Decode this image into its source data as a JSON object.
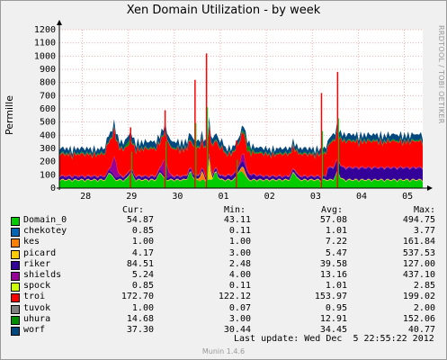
{
  "title": "Xen Domain Utilization - by week",
  "side_credit": "RRDTOOL / TOBI OETIKER",
  "chart_data": {
    "type": "area",
    "title": "Xen Domain Utilization - by week",
    "ylabel": "Permille",
    "ylim": [
      0,
      1200
    ],
    "yticks": [
      0,
      100,
      200,
      300,
      400,
      500,
      600,
      700,
      800,
      900,
      1000,
      1100,
      1200
    ],
    "xtick_labels": [
      "28",
      "29",
      "30",
      "01",
      "02",
      "03",
      "04",
      "05"
    ],
    "grid": true,
    "stacked": true,
    "series": [
      {
        "name": "Domain_0",
        "color": "#00cc00",
        "cur": "54.87",
        "min": "43.11",
        "avg": "57.08",
        "max": "494.75"
      },
      {
        "name": "chekotey",
        "color": "#0066b3",
        "cur": "0.85",
        "min": "0.11",
        "avg": "1.01",
        "max": "3.77"
      },
      {
        "name": "kes",
        "color": "#ff8000",
        "cur": "1.00",
        "min": "1.00",
        "avg": "7.22",
        "max": "161.84"
      },
      {
        "name": "picard",
        "color": "#ffcc00",
        "cur": "4.17",
        "min": "3.00",
        "avg": "5.47",
        "max": "537.53"
      },
      {
        "name": "riker",
        "color": "#330099",
        "cur": "84.51",
        "min": "2.48",
        "avg": "39.58",
        "max": "127.00"
      },
      {
        "name": "shields",
        "color": "#990099",
        "cur": "5.24",
        "min": "4.00",
        "avg": "13.16",
        "max": "437.10"
      },
      {
        "name": "spock",
        "color": "#ccff00",
        "cur": "0.85",
        "min": "0.11",
        "avg": "1.01",
        "max": "2.85"
      },
      {
        "name": "troi",
        "color": "#ff0000",
        "cur": "172.70",
        "min": "122.12",
        "avg": "153.97",
        "max": "199.02"
      },
      {
        "name": "tuvok",
        "color": "#808080",
        "cur": "1.00",
        "min": "0.07",
        "avg": "0.95",
        "max": "2.00"
      },
      {
        "name": "uhura",
        "color": "#008f00",
        "cur": "14.68",
        "min": "3.00",
        "avg": "12.91",
        "max": "152.06"
      },
      {
        "name": "worf",
        "color": "#00487d",
        "cur": "37.30",
        "min": "30.44",
        "avg": "34.45",
        "max": "40.77"
      }
    ]
  },
  "legend_headers": {
    "cur": "Cur:",
    "min": "Min:",
    "avg": "Avg:",
    "max": "Max:"
  },
  "last_update": "Last update: Wed Dec  5 22:55:22 2012",
  "footer": "Munin 1.4.6"
}
